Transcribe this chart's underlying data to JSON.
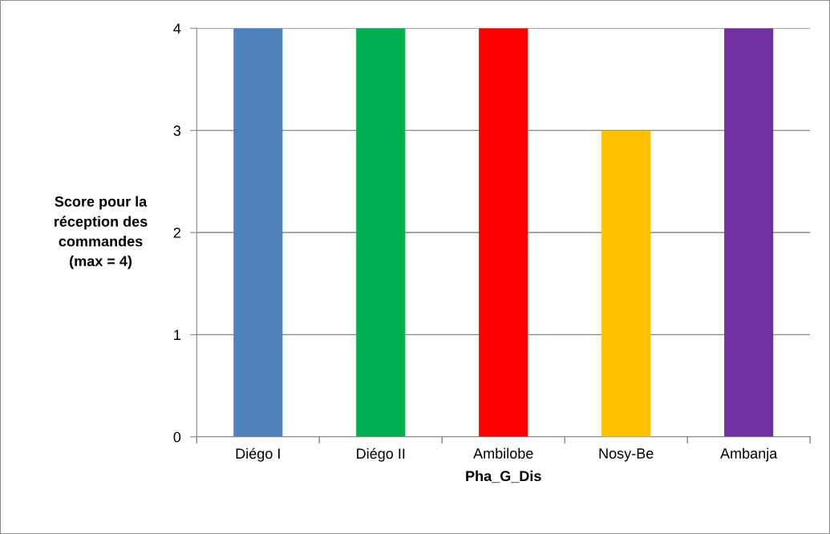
{
  "chart_data": {
    "type": "bar",
    "xlabel": "Pha_G_Dis",
    "ylabel": "Score pour la\nréception des\ncommandes\n(max = 4)",
    "categories": [
      "Diégo I",
      "Diégo II",
      "Ambilobe",
      "Nosy-Be",
      "Ambanja"
    ],
    "values": [
      4,
      4,
      4,
      3,
      4
    ],
    "colors": [
      "#4f81bd",
      "#00b050",
      "#ff0000",
      "#ffc000",
      "#7030a0"
    ],
    "ylim": [
      0,
      4
    ],
    "yticks": [
      0,
      1,
      2,
      3,
      4
    ],
    "grid": "y",
    "legend": false
  }
}
